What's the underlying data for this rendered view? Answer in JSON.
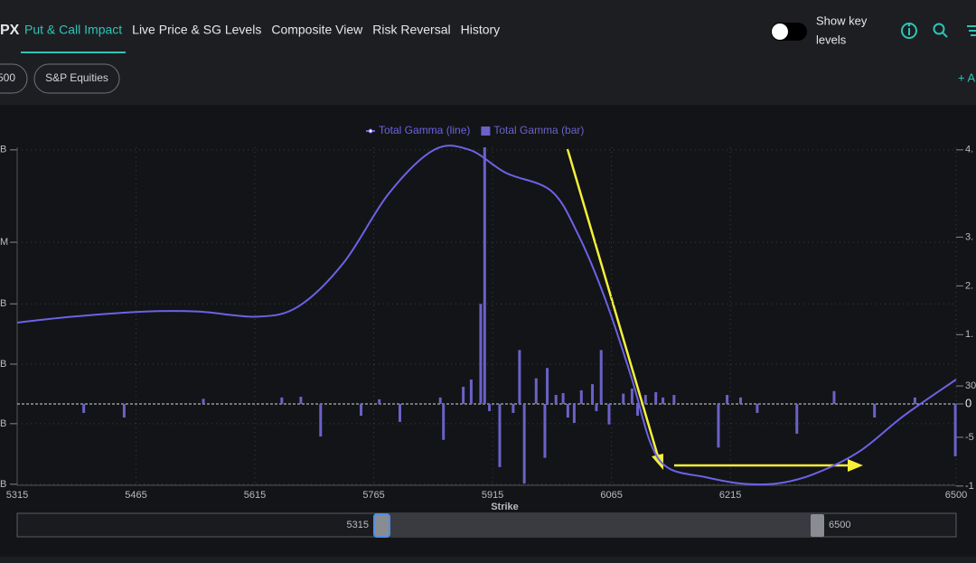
{
  "nav": {
    "brand": "PX",
    "tabs": [
      "Put & Call Impact",
      "Live Price & SG Levels",
      "Composite View",
      "Risk Reversal",
      "History"
    ],
    "toggle_label": [
      "Show key",
      "levels"
    ]
  },
  "filters": [
    "500",
    "S&P Equities"
  ],
  "add_button": "+ A",
  "chart_data": {
    "type": "combo",
    "series": [
      {
        "name": "Total Gamma (line)",
        "type": "line",
        "color": "#6c62e6",
        "x": [
          5315,
          5385,
          5476,
          5544,
          5618,
          5670,
          5727,
          5784,
          5841,
          5886,
          5932,
          5989,
          6023,
          6057,
          6091,
          6114,
          6137,
          6183,
          6228,
          6274,
          6319,
          6377,
          6434,
          6500
        ],
        "values": [
          31.7,
          34,
          36,
          36,
          34,
          38,
          55,
          82,
          99,
          99,
          90,
          83,
          66,
          41,
          9.5,
          -15,
          -25,
          -28.5,
          -31,
          -31,
          -27.5,
          -18.7,
          -4.6,
          9.5
        ]
      },
      {
        "name": "Total Gamma (bar)",
        "type": "bar",
        "color": "#6a62c8",
        "x": [
          5399,
          5450,
          5550,
          5649,
          5673,
          5698,
          5749,
          5772,
          5798,
          5849,
          5853,
          5878,
          5888,
          5900,
          5905,
          5911,
          5924,
          5941,
          5949,
          5955,
          5970,
          5981,
          5984,
          5995,
          6004,
          6010,
          6018,
          6027,
          6041,
          6046,
          6052,
          6062,
          6080,
          6091,
          6098,
          6108,
          6121,
          6130,
          6144,
          6200,
          6211,
          6228,
          6249,
          6299,
          6346,
          6397,
          6448,
          6499
        ],
        "values": [
          -3.5,
          -5.3,
          2,
          2.5,
          2.8,
          -12.7,
          -4.6,
          1.8,
          -7,
          2.5,
          -14,
          6.7,
          9.5,
          39,
          100,
          -2.8,
          -24.6,
          -3.5,
          21,
          -31,
          10,
          -21,
          14,
          3.5,
          4.2,
          -5.3,
          -7.4,
          5.3,
          7.7,
          -2.8,
          21,
          -8,
          4,
          6,
          -4.6,
          3.5,
          4.6,
          2.5,
          3.5,
          -17,
          3.5,
          2.5,
          -3.5,
          -11.6,
          5,
          -5.3,
          2.5,
          -20.4
        ]
      }
    ],
    "xlabel": "Strike",
    "xlim": [
      5315,
      6500
    ],
    "xticks": [
      5315,
      5465,
      5615,
      5765,
      5915,
      6065,
      6215,
      6500
    ],
    "ylim": [
      -31.7,
      100
    ],
    "yticks": [
      {
        "value": 99,
        "label": "B"
      },
      {
        "value": 63,
        "label": "M"
      },
      {
        "value": 39,
        "label": "B"
      },
      {
        "value": 15.5,
        "label": "B"
      },
      {
        "value": -7.7,
        "label": "B"
      },
      {
        "value": -31.3,
        "label": "B"
      }
    ],
    "y2lim": [
      -31.7,
      100
    ],
    "y2ticks": [
      {
        "value": 99,
        "label": "4."
      },
      {
        "value": 65,
        "label": "3."
      },
      {
        "value": 46,
        "label": "2."
      },
      {
        "value": 27,
        "label": "1."
      },
      {
        "value": 7,
        "label": "30"
      },
      0,
      {
        "value": -13,
        "label": "-5"
      },
      {
        "value": -32,
        "label": "-1"
      }
    ],
    "grid": true
  }
}
